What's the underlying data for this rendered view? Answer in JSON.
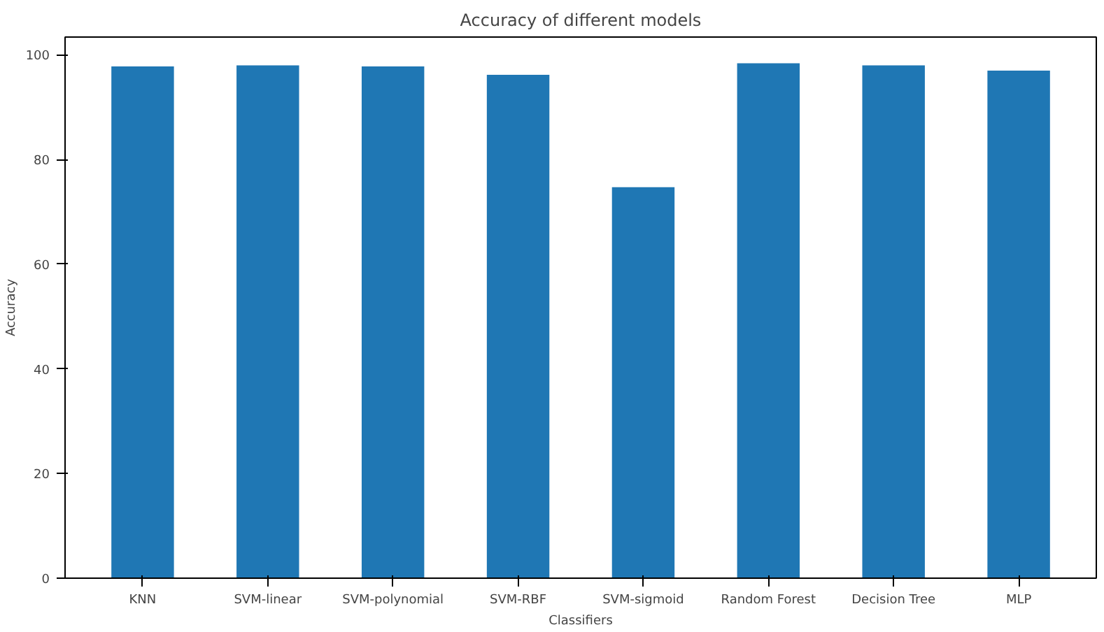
{
  "chart_data": {
    "type": "bar",
    "title": "Accuracy of different models",
    "xlabel": "Classifiers",
    "ylabel": "Accuracy",
    "categories": [
      "KNN",
      "SVM-linear",
      "SVM-polynomial",
      "SVM-RBF",
      "SVM-sigmoid",
      "Random Forest",
      "Decision Tree",
      "MLP"
    ],
    "values": [
      97.8,
      98.0,
      97.8,
      96.2,
      74.7,
      98.4,
      98.0,
      97.0
    ],
    "color": "#1f77b4",
    "ylim": [
      0,
      103.4
    ],
    "yticks": [
      0,
      20,
      40,
      60,
      80,
      100
    ],
    "grid": false
  }
}
